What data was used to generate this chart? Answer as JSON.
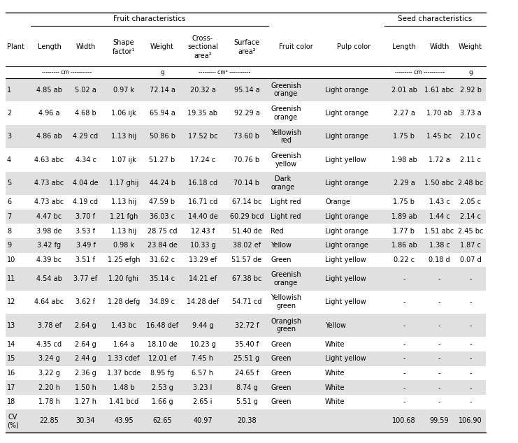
{
  "col_headers": [
    "Plant",
    "Length",
    "Width",
    "Shape\nfactor¹",
    "Weight",
    "Cross-\nsectional\narea²",
    "Surface\narea²",
    "Fruit color",
    "Pulp color",
    "Length",
    "Width",
    "Weight"
  ],
  "rows": [
    [
      "1",
      "4.85 ab",
      "5.02 a",
      "0.97 k",
      "72.14 a",
      "20.32 a",
      "95.14 a",
      "Greenish\norange",
      "Light orange",
      "2.01 ab",
      "1.61 abc",
      "2.92 b"
    ],
    [
      "2",
      "4.96 a",
      "4.68 b",
      "1.06 ijk",
      "65.94 a",
      "19.35 ab",
      "92.29 a",
      "Greenish\norange",
      "Light orange",
      "2.27 a",
      "1.70 ab",
      "3.73 a"
    ],
    [
      "3",
      "4.86 ab",
      "4.29 cd",
      "1.13 hij",
      "50.86 b",
      "17.52 bc",
      "73.60 b",
      "Yellowish\nred",
      "Light orange",
      "1.75 b",
      "1.45 bc",
      "2.10 c"
    ],
    [
      "4",
      "4.63 abc",
      "4.34 c",
      "1.07 ijk",
      "51.27 b",
      "17.24 c",
      "70.76 b",
      "Greenish\nyellow",
      "Light yellow",
      "1.98 ab",
      "1.72 a",
      "2.11 c"
    ],
    [
      "5",
      "4.73 abc",
      "4.04 de",
      "1.17 ghij",
      "44.24 b",
      "16.18 cd",
      "70.14 b",
      "Dark\norange",
      "Light orange",
      "2.29 a",
      "1.50 abc",
      "2.48 bc"
    ],
    [
      "6",
      "4.73 abc",
      "4.19 cd",
      "1.13 hij",
      "47.59 b",
      "16.71 cd",
      "67.14 bc",
      "Light red",
      "Orange",
      "1.75 b",
      "1.43 c",
      "2.05 c"
    ],
    [
      "7",
      "4.47 bc",
      "3.70 f",
      "1.21 fgh",
      "36.03 c",
      "14.40 de",
      "60.29 bcd",
      "Light red",
      "Light orange",
      "1.89 ab",
      "1.44 c",
      "2.14 c"
    ],
    [
      "8",
      "3.98 de",
      "3.53 f",
      "1.13 hij",
      "28.75 cd",
      "12.43 f",
      "51.40 de",
      "Red",
      "Light orange",
      "1.77 b",
      "1.51 abc",
      "2.45 bc"
    ],
    [
      "9",
      "3.42 fg",
      "3.49 f",
      "0.98 k",
      "23.84 de",
      "10.33 g",
      "38.02 ef",
      "Yellow",
      "Light orange",
      "1.86 ab",
      "1.38 c",
      "1.87 c"
    ],
    [
      "10",
      "4.39 bc",
      "3.51 f",
      "1.25 efgh",
      "31.62 c",
      "13.29 ef",
      "51.57 de",
      "Green",
      "Light yellow",
      "0.22 c",
      "0.18 d",
      "0.07 d"
    ],
    [
      "11",
      "4.54 ab",
      "3.77 ef",
      "1.20 fghi",
      "35.14 c",
      "14.21 ef",
      "67.38 bc",
      "Greenish\norange",
      "Light yellow",
      "-",
      "-",
      "-"
    ],
    [
      "12",
      "4.64 abc",
      "3.62 f",
      "1.28 defg",
      "34.89 c",
      "14.28 def",
      "54.71 cd",
      "Yellowish\ngreen",
      "Light yellow",
      "-",
      "-",
      "-"
    ],
    [
      "13",
      "3.78 ef",
      "2.64 g",
      "1.43 bc",
      "16.48 def",
      "9.44 g",
      "32.72 f",
      "Orangish\ngreen",
      "Yellow",
      "-",
      "-",
      "-"
    ],
    [
      "14",
      "4.35 cd",
      "2.64 g",
      "1.64 a",
      "18.10 de",
      "10.23 g",
      "35.40 f",
      "Green",
      "White",
      "-",
      "-",
      "-"
    ],
    [
      "15",
      "3.24 g",
      "2.44 g",
      "1.33 cdef",
      "12.01 ef",
      "7.45 h",
      "25.51 g",
      "Green",
      "Light yellow",
      "-",
      "-",
      "-"
    ],
    [
      "16",
      "3.22 g",
      "2.36 g",
      "1.37 bcde",
      "8.95 fg",
      "6.57 h",
      "24.65 f",
      "Green",
      "White",
      "-",
      "-",
      "-"
    ],
    [
      "17",
      "2.20 h",
      "1.50 h",
      "1.48 b",
      "2.53 g",
      "3.23 l",
      "8.74 g",
      "Green",
      "White",
      "-",
      "-",
      "-"
    ],
    [
      "18",
      "1.78 h",
      "1.27 h",
      "1.41 bcd",
      "1.66 g",
      "2.65 i",
      "5.51 g",
      "Green",
      "White",
      "-",
      "-",
      "-"
    ],
    [
      "CV\n(%)",
      "22.85",
      "30.34",
      "43.95",
      "62.65",
      "40.97",
      "20.38",
      "",
      "",
      "100.68",
      "99.59",
      "106.90"
    ]
  ],
  "shaded_rows": [
    0,
    2,
    4,
    6,
    8,
    10,
    12,
    14,
    16,
    18
  ],
  "shade_color": "#e0e0e0",
  "bg_color": "#ffffff",
  "text_color": "#000000",
  "font_size": 7.0,
  "fruit_char_label": "Fruit characteristics",
  "seed_char_label": "Seed characteristics",
  "units_cm_fruit": "--------- cm -----------",
  "units_g_fruit": "g",
  "units_cm2": "--------- cm² -----------",
  "units_cm_seed": "--------- cm -----------",
  "units_g_seed": "g"
}
